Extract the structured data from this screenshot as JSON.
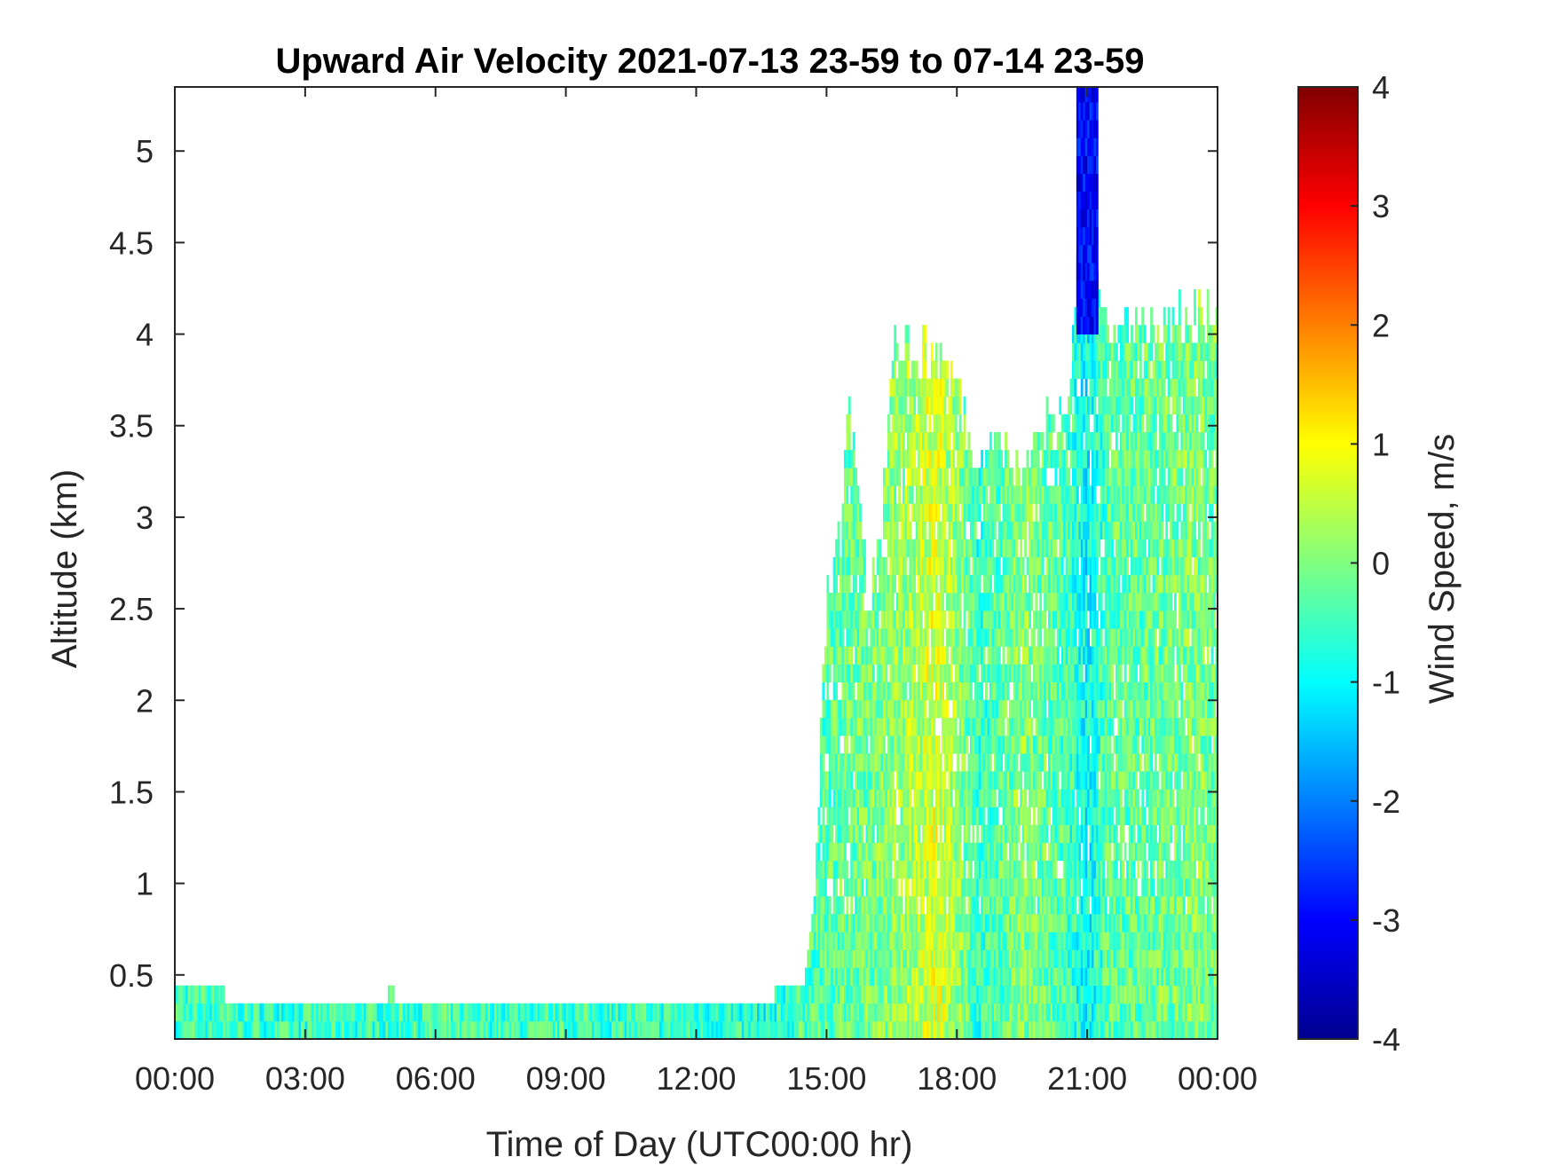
{
  "chart_data": {
    "type": "heatmap",
    "title": "Upward Air Velocity 2021-07-13 23-59 to 07-14 23-59",
    "xlabel": "Time of Day (UTC00:00 hr)",
    "ylabel": "Altitude (km)",
    "colorbar_label": "Wind Speed, m/s",
    "colormap": "jet",
    "x_unit": "hours",
    "xlim": [
      0,
      24
    ],
    "ylim": [
      0.15,
      5.35
    ],
    "clim": [
      -4,
      4
    ],
    "x_ticks": [
      {
        "value": 0,
        "label": "00:00"
      },
      {
        "value": 3,
        "label": "03:00"
      },
      {
        "value": 6,
        "label": "06:00"
      },
      {
        "value": 9,
        "label": "09:00"
      },
      {
        "value": 12,
        "label": "12:00"
      },
      {
        "value": 15,
        "label": "15:00"
      },
      {
        "value": 18,
        "label": "18:00"
      },
      {
        "value": 21,
        "label": "21:00"
      },
      {
        "value": 24,
        "label": "00:00"
      }
    ],
    "y_ticks": [
      {
        "value": 0.5,
        "label": "0.5"
      },
      {
        "value": 1,
        "label": "1"
      },
      {
        "value": 1.5,
        "label": "1.5"
      },
      {
        "value": 2,
        "label": "2"
      },
      {
        "value": 2.5,
        "label": "2.5"
      },
      {
        "value": 3,
        "label": "3"
      },
      {
        "value": 3.5,
        "label": "3.5"
      },
      {
        "value": 4,
        "label": "4"
      },
      {
        "value": 4.5,
        "label": "4.5"
      },
      {
        "value": 5,
        "label": "5"
      }
    ],
    "colorbar_ticks": [
      {
        "value": 4,
        "label": "4"
      },
      {
        "value": 3,
        "label": "3"
      },
      {
        "value": 2,
        "label": "2"
      },
      {
        "value": 1,
        "label": "1"
      },
      {
        "value": 0,
        "label": "0"
      },
      {
        "value": -1,
        "label": "-1"
      },
      {
        "value": -2,
        "label": "-2"
      },
      {
        "value": -3,
        "label": "-3"
      },
      {
        "value": -4,
        "label": "-4"
      }
    ],
    "data_top_altitude_km": [
      [
        0.0,
        0.35
      ],
      [
        0.5,
        0.35
      ],
      [
        1.0,
        0.35
      ],
      [
        2.5,
        0.3
      ],
      [
        3.0,
        0.25
      ],
      [
        5.0,
        0.35
      ],
      [
        5.5,
        0.25
      ],
      [
        8.0,
        0.25
      ],
      [
        10.0,
        0.25
      ],
      [
        12.0,
        0.25
      ],
      [
        13.7,
        0.25
      ],
      [
        13.8,
        0.35
      ],
      [
        14.5,
        0.4
      ],
      [
        14.7,
        0.8
      ],
      [
        15.0,
        2.5
      ],
      [
        15.3,
        2.8
      ],
      [
        15.5,
        3.6
      ],
      [
        16.0,
        2.4
      ],
      [
        16.3,
        3.0
      ],
      [
        16.5,
        3.9
      ],
      [
        17.0,
        3.9
      ],
      [
        17.5,
        3.85
      ],
      [
        18.0,
        3.6
      ],
      [
        18.5,
        3.3
      ],
      [
        19.0,
        3.3
      ],
      [
        19.5,
        3.2
      ],
      [
        20.0,
        3.4
      ],
      [
        20.5,
        3.5
      ],
      [
        20.7,
        4.0
      ],
      [
        21.0,
        5.3
      ],
      [
        21.3,
        4.0
      ],
      [
        22.0,
        4.0
      ],
      [
        23.0,
        4.0
      ],
      [
        23.9,
        4.1
      ],
      [
        24.0,
        4.1
      ]
    ],
    "mean_velocity_ms": [
      [
        0.0,
        -0.5
      ],
      [
        3.0,
        -0.6
      ],
      [
        6.0,
        -0.5
      ],
      [
        9.0,
        -0.5
      ],
      [
        12.0,
        -0.6
      ],
      [
        13.7,
        -0.8
      ],
      [
        14.5,
        -0.4
      ],
      [
        15.0,
        -0.3
      ],
      [
        16.0,
        -0.1
      ],
      [
        17.0,
        0.3
      ],
      [
        17.5,
        0.7
      ],
      [
        18.0,
        0.2
      ],
      [
        18.5,
        -0.6
      ],
      [
        19.0,
        -0.3
      ],
      [
        19.5,
        0.1
      ],
      [
        20.0,
        -0.2
      ],
      [
        20.5,
        -0.4
      ],
      [
        21.0,
        -1.0
      ],
      [
        21.5,
        -0.3
      ],
      [
        22.5,
        -0.2
      ],
      [
        23.5,
        0.0
      ],
      [
        24.0,
        -0.1
      ]
    ],
    "updraft_column": {
      "x_start": 20.75,
      "x_end": 21.25,
      "y_start": 4.0,
      "y_end": 5.35,
      "velocity_ms": -3.0
    }
  }
}
